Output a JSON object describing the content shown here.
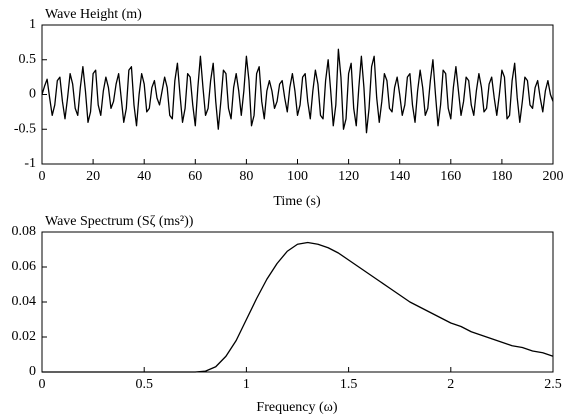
{
  "chart_data": [
    {
      "type": "line",
      "title": "Wave Height (m)",
      "x_label": "Time (s)",
      "x": [
        0,
        1,
        2,
        3,
        4,
        5,
        6,
        7,
        8,
        9,
        10,
        11,
        12,
        13,
        14,
        15,
        16,
        17,
        18,
        19,
        20,
        21,
        22,
        23,
        24,
        25,
        26,
        27,
        28,
        29,
        30,
        31,
        32,
        33,
        34,
        35,
        36,
        37,
        38,
        39,
        40,
        41,
        42,
        43,
        44,
        45,
        46,
        47,
        48,
        49,
        50,
        51,
        52,
        53,
        54,
        55,
        56,
        57,
        58,
        59,
        60,
        61,
        62,
        63,
        64,
        65,
        66,
        67,
        68,
        69,
        70,
        71,
        72,
        73,
        74,
        75,
        76,
        77,
        78,
        79,
        80,
        81,
        82,
        83,
        84,
        85,
        86,
        87,
        88,
        89,
        90,
        91,
        92,
        93,
        94,
        95,
        96,
        97,
        98,
        99,
        100,
        101,
        102,
        103,
        104,
        105,
        106,
        107,
        108,
        109,
        110,
        111,
        112,
        113,
        114,
        115,
        116,
        117,
        118,
        119,
        120,
        121,
        122,
        123,
        124,
        125,
        126,
        127,
        128,
        129,
        130,
        131,
        132,
        133,
        134,
        135,
        136,
        137,
        138,
        139,
        140,
        141,
        142,
        143,
        144,
        145,
        146,
        147,
        148,
        149,
        150,
        151,
        152,
        153,
        154,
        155,
        156,
        157,
        158,
        159,
        160,
        161,
        162,
        163,
        164,
        165,
        166,
        167,
        168,
        169,
        170,
        171,
        172,
        173,
        174,
        175,
        176,
        177,
        178,
        179,
        180,
        181,
        182,
        183,
        184,
        185,
        186,
        187,
        188,
        189,
        190,
        191,
        192,
        193,
        194,
        195,
        196,
        197,
        198,
        199,
        200
      ],
      "values": [
        0,
        0.12,
        0.22,
        -0.05,
        -0.3,
        -0.15,
        0.2,
        0.25,
        -0.1,
        -0.35,
        -0.05,
        0.3,
        0.15,
        -0.2,
        -0.3,
        0.1,
        0.4,
        0.05,
        -0.4,
        -0.25,
        0.3,
        0.35,
        -0.15,
        -0.3,
        0.05,
        0.25,
        0.1,
        -0.2,
        -0.1,
        0.15,
        0.3,
        -0.05,
        -0.4,
        -0.2,
        0.35,
        0.4,
        -0.15,
        -0.45,
        0,
        0.3,
        0.15,
        -0.25,
        -0.2,
        0.1,
        0.2,
        -0.05,
        -0.15,
        0.05,
        0.25,
        0.1,
        -0.3,
        -0.35,
        0.2,
        0.45,
        0,
        -0.4,
        -0.2,
        0.3,
        0.25,
        -0.15,
        -0.45,
        0.1,
        0.55,
        0.1,
        -0.3,
        -0.2,
        0.2,
        0.45,
        -0.1,
        -0.5,
        -0.1,
        0.35,
        0.3,
        -0.2,
        -0.35,
        0.1,
        0.3,
        0.05,
        -0.3,
        0.05,
        0.55,
        0.2,
        -0.45,
        -0.3,
        0.3,
        0.4,
        -0.1,
        -0.35,
        0.05,
        0.2,
        0.05,
        -0.2,
        -0.1,
        0.15,
        0.2,
        -0.05,
        -0.25,
        0.1,
        0.3,
        0.05,
        -0.3,
        -0.15,
        0.25,
        0.3,
        -0.1,
        -0.35,
        0.05,
        0.35,
        0.15,
        -0.3,
        -0.35,
        0.2,
        0.5,
        0.05,
        -0.45,
        -0.15,
        0.65,
        0.25,
        -0.5,
        -0.35,
        0.3,
        0.45,
        -0.2,
        -0.45,
        0.1,
        0.55,
        0.1,
        -0.55,
        -0.2,
        0.4,
        0.55,
        -0.05,
        -0.4,
        -0.1,
        0.3,
        0.2,
        -0.2,
        -0.25,
        0.1,
        0.25,
        0,
        -0.3,
        -0.15,
        0.25,
        0.3,
        -0.15,
        -0.4,
        0.05,
        0.35,
        0.1,
        -0.3,
        -0.2,
        0.2,
        0.5,
        0,
        -0.45,
        -0.15,
        0.35,
        0.3,
        -0.2,
        -0.35,
        0.1,
        0.4,
        0.05,
        -0.3,
        -0.1,
        0.25,
        0.2,
        -0.15,
        -0.3,
        0.05,
        0.3,
        0.1,
        -0.25,
        -0.2,
        0.15,
        0.25,
        -0.05,
        -0.3,
        0,
        0.35,
        0.25,
        -0.35,
        -0.3,
        0.2,
        0.45,
        -0.05,
        -0.4,
        -0.1,
        0.25,
        0.2,
        -0.15,
        -0.2,
        0.1,
        0.2,
        -0.05,
        -0.25,
        0.05,
        0.2,
        0,
        -0.1
      ],
      "color": "#000000",
      "xlim": [
        0,
        200
      ],
      "xticks": [
        0,
        20,
        40,
        60,
        80,
        100,
        120,
        140,
        160,
        180,
        200
      ],
      "ylim": [
        -1,
        1
      ],
      "yticks": [
        -1,
        -0.5,
        0,
        0.5,
        1
      ]
    },
    {
      "type": "line",
      "title": "Wave Spectrum (Sζ (ms²))",
      "x_label": "Frequency (ω)",
      "x": [
        0,
        0.05,
        0.1,
        0.15,
        0.2,
        0.25,
        0.3,
        0.35,
        0.4,
        0.45,
        0.5,
        0.55,
        0.6,
        0.65,
        0.7,
        0.75,
        0.8,
        0.85,
        0.9,
        0.95,
        1,
        1.05,
        1.1,
        1.15,
        1.2,
        1.25,
        1.3,
        1.35,
        1.4,
        1.45,
        1.5,
        1.55,
        1.6,
        1.65,
        1.7,
        1.75,
        1.8,
        1.85,
        1.9,
        1.95,
        2,
        2.05,
        2.1,
        2.15,
        2.2,
        2.25,
        2.3,
        2.35,
        2.4,
        2.45,
        2.5
      ],
      "values": [
        0,
        0,
        0,
        0,
        0,
        0,
        0,
        0,
        0,
        0,
        0,
        0,
        0,
        0,
        0,
        0,
        0.0005,
        0.003,
        0.009,
        0.018,
        0.03,
        0.042,
        0.053,
        0.062,
        0.069,
        0.073,
        0.074,
        0.073,
        0.071,
        0.068,
        0.064,
        0.06,
        0.056,
        0.052,
        0.048,
        0.044,
        0.04,
        0.037,
        0.034,
        0.031,
        0.028,
        0.026,
        0.023,
        0.021,
        0.019,
        0.017,
        0.015,
        0.014,
        0.012,
        0.011,
        0.009
      ],
      "color": "#000000",
      "xlim": [
        0,
        2.5
      ],
      "xticks": [
        0,
        0.5,
        1,
        1.5,
        2,
        2.5
      ],
      "ylim": [
        0,
        0.08
      ],
      "yticks": [
        0,
        0.02,
        0.04,
        0.06,
        0.08
      ]
    }
  ]
}
